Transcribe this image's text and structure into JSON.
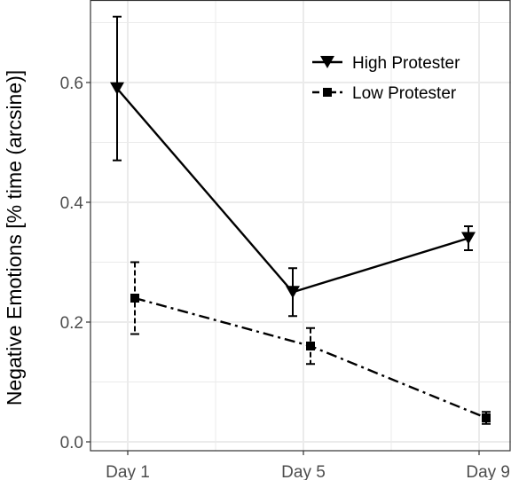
{
  "chart_data": {
    "type": "line",
    "title": "",
    "xlabel": "",
    "ylabel": "Negative Emotions [% time (arcsine)]",
    "categories": [
      "Day 1",
      "Day 5",
      "Day 9"
    ],
    "yticks": [
      "0.0",
      "0.2",
      "0.4",
      "0.6"
    ],
    "ylim": [
      0,
      0.72
    ],
    "grid": true,
    "legend_position": "top-right",
    "series": [
      {
        "name": "High Protester",
        "values": [
          0.59,
          0.25,
          0.34
        ],
        "error_low": [
          0.47,
          0.21,
          0.32
        ],
        "error_high": [
          0.71,
          0.29,
          0.36
        ],
        "line_style": "solid",
        "marker": "triangle-down"
      },
      {
        "name": "Low Protester",
        "values": [
          0.24,
          0.16,
          0.04
        ],
        "error_low": [
          0.18,
          0.13,
          0.03
        ],
        "error_high": [
          0.3,
          0.19,
          0.05
        ],
        "line_style": "dashdot",
        "marker": "square"
      }
    ],
    "colors": {
      "grid": "#ebebeb",
      "ink": "#000000",
      "tick_text": "#4d4d4d"
    }
  }
}
